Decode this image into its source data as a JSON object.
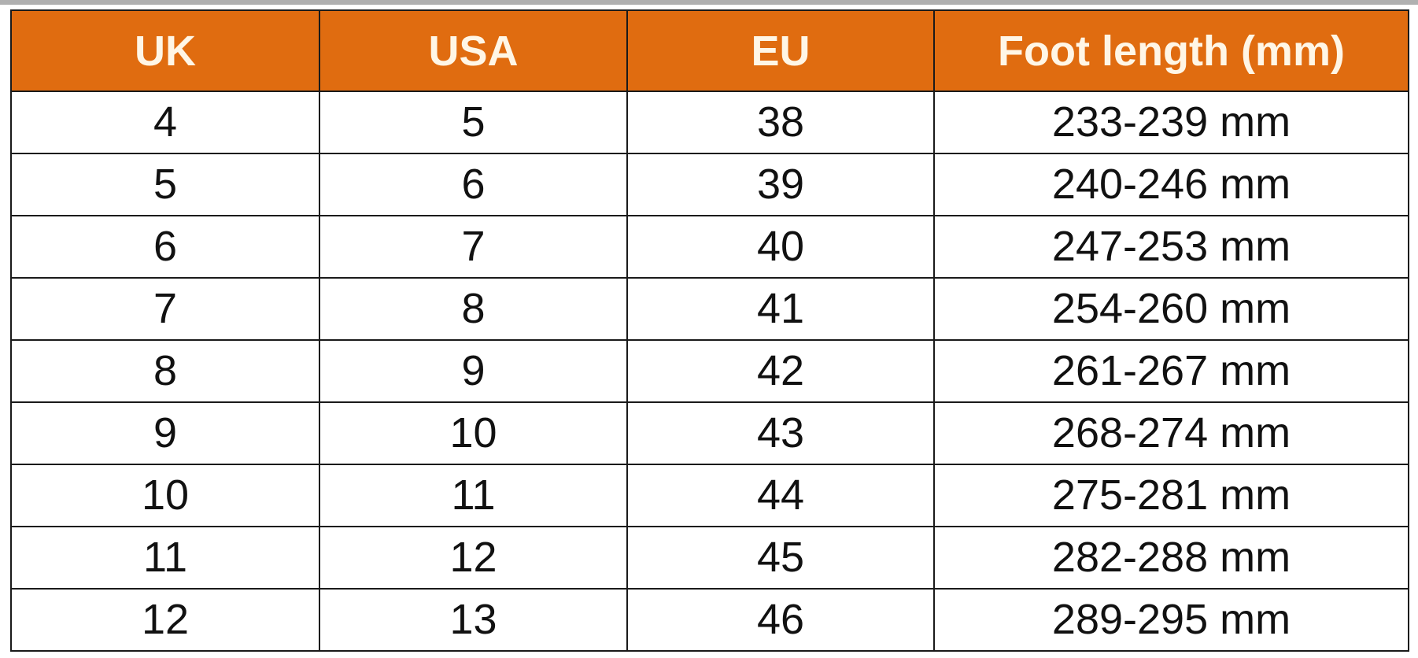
{
  "colors": {
    "header_bg": "#e06c10",
    "header_text": "#fff6e6"
  },
  "table": {
    "headers": [
      "UK",
      "USA",
      "EU",
      "Foot length (mm)"
    ],
    "rows": [
      [
        "4",
        "5",
        "38",
        "233-239 mm"
      ],
      [
        "5",
        "6",
        "39",
        "240-246 mm"
      ],
      [
        "6",
        "7",
        "40",
        "247-253 mm"
      ],
      [
        "7",
        "8",
        "41",
        "254-260 mm"
      ],
      [
        "8",
        "9",
        "42",
        "261-267 mm"
      ],
      [
        "9",
        "10",
        "43",
        "268-274 mm"
      ],
      [
        "10",
        "11",
        "44",
        "275-281 mm"
      ],
      [
        "11",
        "12",
        "45",
        "282-288 mm"
      ],
      [
        "12",
        "13",
        "46",
        "289-295 mm"
      ]
    ]
  }
}
